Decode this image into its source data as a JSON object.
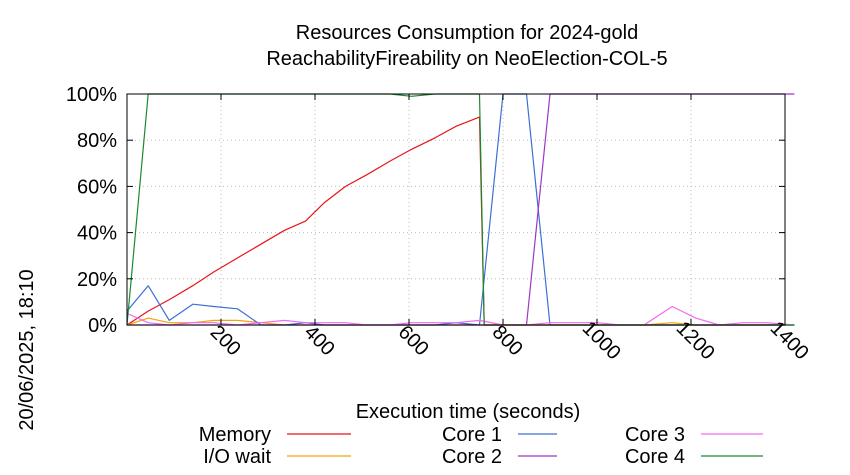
{
  "chart_data": {
    "type": "line",
    "title": [
      "Resources Consumption for 2024-gold",
      "ReachabilityFireability on NeoElection-COL-5"
    ],
    "xlabel": "Execution time (seconds)",
    "ylabel": "",
    "xlim": [
      0,
      1400
    ],
    "ylim": [
      0,
      100
    ],
    "x_ticks": [
      200,
      400,
      600,
      800,
      1000,
      1200,
      1400
    ],
    "y_ticks": [
      "0%",
      "20%",
      "40%",
      "60%",
      "80%",
      "100%"
    ],
    "y_tick_values": [
      0,
      20,
      40,
      60,
      80,
      100
    ],
    "grid": true,
    "legend_position": "bottom",
    "timestamp": "20/06/2025, 18:10",
    "series": [
      {
        "name": "Memory",
        "color": "#e8141a",
        "points": [
          [
            0,
            0
          ],
          [
            45,
            6
          ],
          [
            90,
            11
          ],
          [
            140,
            17
          ],
          [
            185,
            23
          ],
          [
            235,
            29
          ],
          [
            285,
            35
          ],
          [
            335,
            41
          ],
          [
            380,
            45
          ],
          [
            420,
            53
          ],
          [
            465,
            60
          ],
          [
            510,
            65
          ],
          [
            560,
            71
          ],
          [
            605,
            76
          ],
          [
            655,
            81
          ],
          [
            700,
            86
          ],
          [
            750,
            90
          ],
          [
            760,
            0
          ],
          [
            1420,
            0
          ]
        ]
      },
      {
        "name": "I/O wait",
        "color": "#f5a30d",
        "points": [
          [
            0,
            0
          ],
          [
            45,
            3
          ],
          [
            90,
            1
          ],
          [
            140,
            1
          ],
          [
            185,
            2
          ],
          [
            235,
            2
          ],
          [
            285,
            1
          ],
          [
            335,
            0
          ],
          [
            380,
            0
          ],
          [
            420,
            0
          ],
          [
            465,
            0
          ],
          [
            510,
            0
          ],
          [
            560,
            0
          ],
          [
            605,
            0
          ],
          [
            655,
            0
          ],
          [
            700,
            0
          ],
          [
            750,
            0
          ],
          [
            800,
            0
          ],
          [
            850,
            0
          ],
          [
            900,
            0
          ],
          [
            950,
            0
          ],
          [
            1000,
            0
          ],
          [
            1050,
            0
          ],
          [
            1100,
            0
          ],
          [
            1160,
            1
          ],
          [
            1210,
            0
          ],
          [
            1260,
            0
          ],
          [
            1310,
            0
          ],
          [
            1360,
            0
          ],
          [
            1420,
            0
          ]
        ]
      },
      {
        "name": "Core 1",
        "color": "#3c6fd6",
        "points": [
          [
            0,
            6
          ],
          [
            45,
            17
          ],
          [
            90,
            2
          ],
          [
            140,
            9
          ],
          [
            185,
            8
          ],
          [
            235,
            7
          ],
          [
            285,
            0
          ],
          [
            335,
            0
          ],
          [
            380,
            1
          ],
          [
            420,
            0
          ],
          [
            465,
            0
          ],
          [
            510,
            0
          ],
          [
            560,
            0
          ],
          [
            605,
            0
          ],
          [
            655,
            0
          ],
          [
            700,
            1
          ],
          [
            750,
            0
          ],
          [
            800,
            100
          ],
          [
            850,
            100
          ],
          [
            900,
            0
          ],
          [
            1420,
            0
          ]
        ]
      },
      {
        "name": "Core 2",
        "color": "#9b36c8",
        "points": [
          [
            0,
            0
          ],
          [
            45,
            0
          ],
          [
            90,
            0
          ],
          [
            140,
            0
          ],
          [
            185,
            0
          ],
          [
            235,
            0
          ],
          [
            285,
            0
          ],
          [
            335,
            0
          ],
          [
            380,
            0
          ],
          [
            420,
            0
          ],
          [
            465,
            0
          ],
          [
            510,
            0
          ],
          [
            560,
            0
          ],
          [
            605,
            0
          ],
          [
            655,
            0
          ],
          [
            700,
            0
          ],
          [
            750,
            0
          ],
          [
            800,
            0
          ],
          [
            850,
            0
          ],
          [
            900,
            100
          ],
          [
            950,
            100
          ],
          [
            1000,
            100
          ],
          [
            1050,
            100
          ],
          [
            1100,
            100
          ],
          [
            1160,
            100
          ],
          [
            1210,
            100
          ],
          [
            1260,
            100
          ],
          [
            1310,
            100
          ],
          [
            1360,
            100
          ],
          [
            1420,
            100
          ]
        ]
      },
      {
        "name": "Core 3",
        "color": "#f06bf0",
        "points": [
          [
            0,
            5
          ],
          [
            45,
            1
          ],
          [
            90,
            0
          ],
          [
            140,
            1
          ],
          [
            185,
            1
          ],
          [
            235,
            0
          ],
          [
            285,
            1
          ],
          [
            335,
            2
          ],
          [
            380,
            1
          ],
          [
            420,
            1
          ],
          [
            465,
            1
          ],
          [
            510,
            0
          ],
          [
            560,
            0
          ],
          [
            605,
            1
          ],
          [
            655,
            1
          ],
          [
            700,
            1
          ],
          [
            750,
            2
          ],
          [
            800,
            0
          ],
          [
            850,
            0
          ],
          [
            900,
            1
          ],
          [
            950,
            1
          ],
          [
            1000,
            1
          ],
          [
            1050,
            0
          ],
          [
            1100,
            0
          ],
          [
            1160,
            8
          ],
          [
            1210,
            3
          ],
          [
            1260,
            0
          ],
          [
            1310,
            1
          ],
          [
            1360,
            1
          ],
          [
            1420,
            0
          ]
        ]
      },
      {
        "name": "Core 4",
        "color": "#1a8a32",
        "points": [
          [
            0,
            0
          ],
          [
            45,
            100
          ],
          [
            90,
            100
          ],
          [
            140,
            100
          ],
          [
            185,
            100
          ],
          [
            235,
            100
          ],
          [
            285,
            100
          ],
          [
            335,
            100
          ],
          [
            380,
            100
          ],
          [
            420,
            100
          ],
          [
            465,
            100
          ],
          [
            510,
            100
          ],
          [
            560,
            100
          ],
          [
            605,
            99
          ],
          [
            655,
            100
          ],
          [
            700,
            100
          ],
          [
            750,
            100
          ],
          [
            760,
            0
          ],
          [
            1420,
            0
          ]
        ]
      }
    ]
  }
}
